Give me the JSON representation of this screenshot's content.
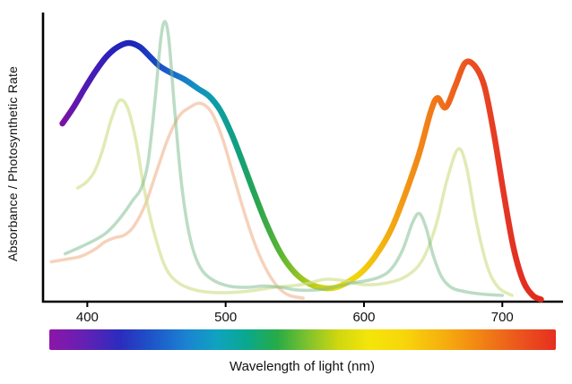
{
  "chart_data": {
    "type": "line",
    "xlabel": "Wavelength of light (nm)",
    "ylabel": "Absorbance / Photosynthetic Rate",
    "xlim": [
      368,
      740
    ],
    "ylim": [
      0,
      1.05
    ],
    "x_ticks": [
      400,
      500,
      600,
      700
    ],
    "grid": false,
    "legend": "none",
    "axis_color": "#000000",
    "series": [
      {
        "name": "thick-spectral-action-curve",
        "stroke": "spectral-gradient",
        "width": 6.5,
        "opacity": 1,
        "points": [
          [
            382,
            0.66
          ],
          [
            390,
            0.72
          ],
          [
            398,
            0.79
          ],
          [
            406,
            0.855
          ],
          [
            414,
            0.91
          ],
          [
            422,
            0.945
          ],
          [
            430,
            0.96
          ],
          [
            438,
            0.945
          ],
          [
            446,
            0.905
          ],
          [
            452,
            0.875
          ],
          [
            460,
            0.85
          ],
          [
            470,
            0.825
          ],
          [
            480,
            0.79
          ],
          [
            488,
            0.762
          ],
          [
            496,
            0.71
          ],
          [
            504,
            0.625
          ],
          [
            512,
            0.52
          ],
          [
            520,
            0.41
          ],
          [
            530,
            0.28
          ],
          [
            540,
            0.175
          ],
          [
            550,
            0.105
          ],
          [
            560,
            0.065
          ],
          [
            570,
            0.048
          ],
          [
            580,
            0.05
          ],
          [
            590,
            0.075
          ],
          [
            600,
            0.115
          ],
          [
            610,
            0.18
          ],
          [
            620,
            0.27
          ],
          [
            630,
            0.4
          ],
          [
            640,
            0.55
          ],
          [
            648,
            0.7
          ],
          [
            653,
            0.755
          ],
          [
            659,
            0.72
          ],
          [
            666,
            0.8
          ],
          [
            673,
            0.885
          ],
          [
            680,
            0.875
          ],
          [
            687,
            0.8
          ],
          [
            694,
            0.62
          ],
          [
            701,
            0.4
          ],
          [
            708,
            0.2
          ],
          [
            715,
            0.075
          ],
          [
            722,
            0.02
          ],
          [
            728,
            0.005
          ]
        ]
      },
      {
        "name": "pale-orange-absorbance-curve",
        "stroke": "#eead84",
        "width": 3.5,
        "opacity": 0.55,
        "points": [
          [
            374,
            0.145
          ],
          [
            385,
            0.155
          ],
          [
            395,
            0.165
          ],
          [
            405,
            0.19
          ],
          [
            413,
            0.22
          ],
          [
            420,
            0.235
          ],
          [
            427,
            0.245
          ],
          [
            434,
            0.28
          ],
          [
            442,
            0.36
          ],
          [
            450,
            0.48
          ],
          [
            458,
            0.6
          ],
          [
            466,
            0.685
          ],
          [
            474,
            0.72
          ],
          [
            482,
            0.735
          ],
          [
            490,
            0.7
          ],
          [
            498,
            0.6
          ],
          [
            506,
            0.46
          ],
          [
            514,
            0.32
          ],
          [
            522,
            0.2
          ],
          [
            530,
            0.11
          ],
          [
            538,
            0.05
          ],
          [
            546,
            0.02
          ],
          [
            556,
            0.01
          ]
        ]
      },
      {
        "name": "pale-yellow-green-absorbance-curve",
        "stroke": "#cfe08e",
        "width": 3.5,
        "opacity": 0.65,
        "points": [
          [
            393,
            0.42
          ],
          [
            399,
            0.44
          ],
          [
            405,
            0.48
          ],
          [
            411,
            0.56
          ],
          [
            417,
            0.67
          ],
          [
            423,
            0.745
          ],
          [
            429,
            0.72
          ],
          [
            435,
            0.6
          ],
          [
            441,
            0.42
          ],
          [
            448,
            0.26
          ],
          [
            456,
            0.13
          ],
          [
            465,
            0.07
          ],
          [
            478,
            0.04
          ],
          [
            495,
            0.03
          ],
          [
            515,
            0.035
          ],
          [
            535,
            0.05
          ],
          [
            555,
            0.06
          ],
          [
            572,
            0.08
          ],
          [
            585,
            0.075
          ],
          [
            600,
            0.06
          ],
          [
            615,
            0.065
          ],
          [
            630,
            0.09
          ],
          [
            642,
            0.15
          ],
          [
            652,
            0.28
          ],
          [
            660,
            0.45
          ],
          [
            668,
            0.565
          ],
          [
            674,
            0.5
          ],
          [
            681,
            0.3
          ],
          [
            689,
            0.13
          ],
          [
            697,
            0.05
          ],
          [
            707,
            0.02
          ]
        ]
      },
      {
        "name": "pale-green-absorbance-curve",
        "stroke": "#7ab98c",
        "width": 3.5,
        "opacity": 0.5,
        "points": [
          [
            384,
            0.175
          ],
          [
            395,
            0.2
          ],
          [
            405,
            0.225
          ],
          [
            413,
            0.25
          ],
          [
            420,
            0.285
          ],
          [
            427,
            0.33
          ],
          [
            433,
            0.375
          ],
          [
            439,
            0.42
          ],
          [
            444,
            0.52
          ],
          [
            449,
            0.75
          ],
          [
            453,
            0.97
          ],
          [
            456,
            1.04
          ],
          [
            459,
            0.97
          ],
          [
            463,
            0.72
          ],
          [
            468,
            0.44
          ],
          [
            474,
            0.24
          ],
          [
            481,
            0.13
          ],
          [
            490,
            0.08
          ],
          [
            502,
            0.055
          ],
          [
            515,
            0.05
          ],
          [
            528,
            0.055
          ],
          [
            540,
            0.05
          ],
          [
            552,
            0.04
          ],
          [
            565,
            0.04
          ],
          [
            578,
            0.05
          ],
          [
            590,
            0.065
          ],
          [
            602,
            0.075
          ],
          [
            612,
            0.09
          ],
          [
            620,
            0.12
          ],
          [
            628,
            0.19
          ],
          [
            635,
            0.29
          ],
          [
            640,
            0.325
          ],
          [
            645,
            0.27
          ],
          [
            650,
            0.17
          ],
          [
            656,
            0.09
          ],
          [
            663,
            0.05
          ],
          [
            672,
            0.035
          ],
          [
            685,
            0.025
          ],
          [
            700,
            0.02
          ]
        ]
      }
    ],
    "spectral_gradient_stops": [
      {
        "nm": 382,
        "color": "#7a12a4"
      },
      {
        "nm": 400,
        "color": "#4e1bb2"
      },
      {
        "nm": 418,
        "color": "#2b21bc"
      },
      {
        "nm": 432,
        "color": "#1c25b8"
      },
      {
        "nm": 448,
        "color": "#1a44c4"
      },
      {
        "nm": 462,
        "color": "#1a69ca"
      },
      {
        "nm": 478,
        "color": "#1490c4"
      },
      {
        "nm": 492,
        "color": "#0d9daa"
      },
      {
        "nm": 508,
        "color": "#119f7f"
      },
      {
        "nm": 522,
        "color": "#27a551"
      },
      {
        "nm": 538,
        "color": "#55b336"
      },
      {
        "nm": 552,
        "color": "#8fc226"
      },
      {
        "nm": 566,
        "color": "#c3cf1a"
      },
      {
        "nm": 580,
        "color": "#e6da12"
      },
      {
        "nm": 594,
        "color": "#f1d50e"
      },
      {
        "nm": 608,
        "color": "#f3bd0f"
      },
      {
        "nm": 622,
        "color": "#f3a313"
      },
      {
        "nm": 638,
        "color": "#f28a16"
      },
      {
        "nm": 654,
        "color": "#f0731a"
      },
      {
        "nm": 670,
        "color": "#ec5a1e"
      },
      {
        "nm": 686,
        "color": "#e84522"
      },
      {
        "nm": 702,
        "color": "#e43524"
      },
      {
        "nm": 728,
        "color": "#e02a1e"
      }
    ],
    "spectrum_bar": {
      "stops": [
        {
          "offset": 0,
          "color": "#8c16a8"
        },
        {
          "offset": 0.07,
          "color": "#6420b4"
        },
        {
          "offset": 0.14,
          "color": "#2b2cbe"
        },
        {
          "offset": 0.2,
          "color": "#1e53c8"
        },
        {
          "offset": 0.27,
          "color": "#1b82d2"
        },
        {
          "offset": 0.33,
          "color": "#0fa3c0"
        },
        {
          "offset": 0.39,
          "color": "#0aa88e"
        },
        {
          "offset": 0.45,
          "color": "#27ab46"
        },
        {
          "offset": 0.51,
          "color": "#7fc22e"
        },
        {
          "offset": 0.57,
          "color": "#cfd70f"
        },
        {
          "offset": 0.63,
          "color": "#f4e50a"
        },
        {
          "offset": 0.7,
          "color": "#f7d60b"
        },
        {
          "offset": 0.78,
          "color": "#f6ae0e"
        },
        {
          "offset": 0.85,
          "color": "#f28414"
        },
        {
          "offset": 0.92,
          "color": "#ec5a1c"
        },
        {
          "offset": 1,
          "color": "#e62f20"
        }
      ]
    }
  }
}
